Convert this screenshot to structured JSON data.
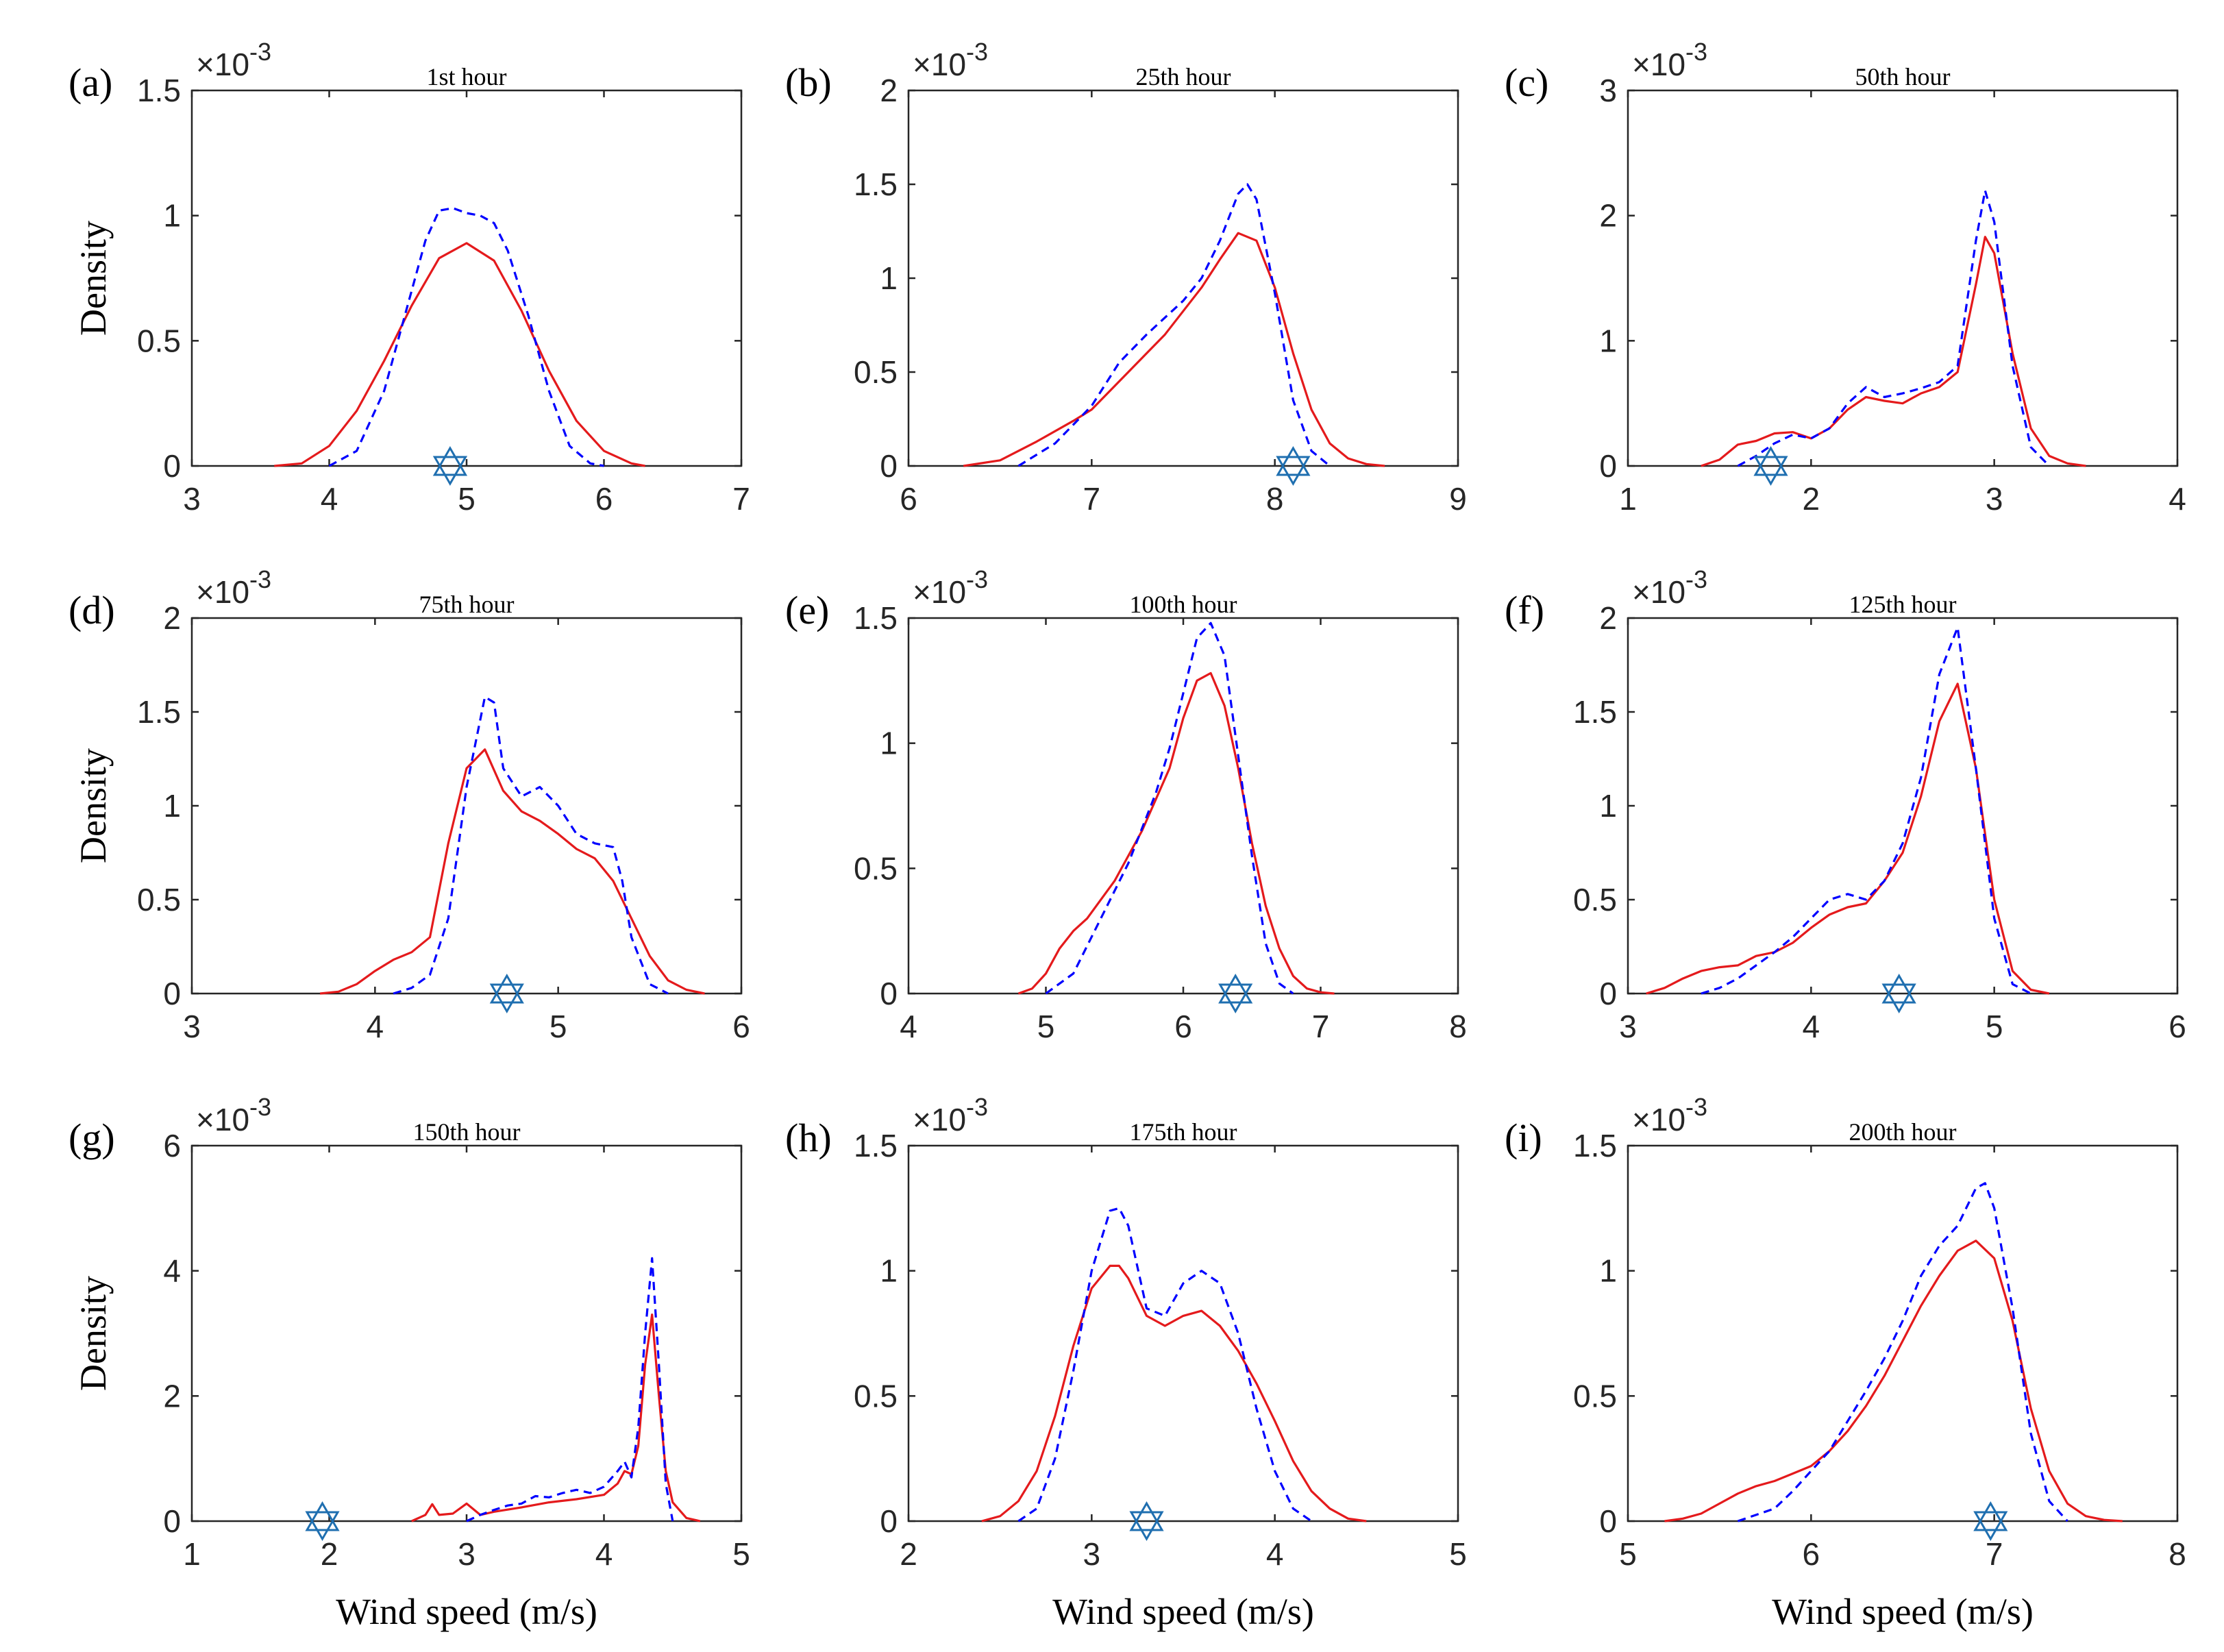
{
  "figure": {
    "xlabel": "Wind speed (m/s)",
    "ylabel": "Density",
    "exponent_base": "×10",
    "exponent_power": "-3"
  },
  "colors": {
    "solid": "#e41a1c",
    "dashed": "#0000ff",
    "marker": "#1f6fb0",
    "axis": "#262626"
  },
  "chart_data": [
    {
      "type": "line",
      "panel": "(a)",
      "title": "1st hour",
      "xlim": [
        3,
        7
      ],
      "ylim": [
        0,
        1.5
      ],
      "xticks": [
        "3",
        "4",
        "5",
        "6",
        "7"
      ],
      "yticks": [
        "0",
        "0.5",
        "1",
        "1.5"
      ],
      "ylabel": "Density",
      "xlabel": "",
      "marker": {
        "x": 4.88,
        "y": 0
      },
      "series": [
        {
          "name": "solid",
          "style": "solid",
          "x": [
            3.6,
            3.8,
            4.0,
            4.2,
            4.4,
            4.6,
            4.8,
            5.0,
            5.2,
            5.4,
            5.6,
            5.8,
            6.0,
            6.2,
            6.3
          ],
          "y": [
            0,
            0.01,
            0.08,
            0.22,
            0.42,
            0.64,
            0.83,
            0.89,
            0.82,
            0.62,
            0.38,
            0.18,
            0.06,
            0.01,
            0
          ]
        },
        {
          "name": "dashed",
          "style": "dashed",
          "x": [
            4.0,
            4.2,
            4.4,
            4.55,
            4.7,
            4.8,
            4.9,
            5.0,
            5.1,
            5.2,
            5.3,
            5.45,
            5.6,
            5.75,
            5.9,
            6.0
          ],
          "y": [
            0,
            0.06,
            0.3,
            0.6,
            0.9,
            1.02,
            1.03,
            1.01,
            1.0,
            0.97,
            0.86,
            0.6,
            0.3,
            0.08,
            0.01,
            0
          ]
        }
      ]
    },
    {
      "type": "line",
      "panel": "(b)",
      "title": "25th hour",
      "xlim": [
        6,
        9
      ],
      "ylim": [
        0,
        2
      ],
      "xticks": [
        "6",
        "7",
        "8",
        "9"
      ],
      "yticks": [
        "0",
        "0.5",
        "1",
        "1.5",
        "2"
      ],
      "ylabel": "",
      "xlabel": "",
      "marker": {
        "x": 8.1,
        "y": 0
      },
      "series": [
        {
          "name": "solid",
          "style": "solid",
          "x": [
            6.3,
            6.5,
            6.7,
            6.9,
            7.0,
            7.2,
            7.4,
            7.6,
            7.7,
            7.8,
            7.9,
            8.0,
            8.1,
            8.2,
            8.3,
            8.4,
            8.5,
            8.6
          ],
          "y": [
            0,
            0.03,
            0.13,
            0.24,
            0.3,
            0.5,
            0.7,
            0.95,
            1.1,
            1.24,
            1.2,
            0.95,
            0.6,
            0.3,
            0.12,
            0.04,
            0.01,
            0
          ]
        },
        {
          "name": "dashed",
          "style": "dashed",
          "x": [
            6.6,
            6.8,
            7.0,
            7.15,
            7.3,
            7.5,
            7.6,
            7.7,
            7.8,
            7.85,
            7.9,
            8.0,
            8.1,
            8.2,
            8.3
          ],
          "y": [
            0,
            0.12,
            0.32,
            0.55,
            0.7,
            0.88,
            1.0,
            1.2,
            1.45,
            1.5,
            1.42,
            0.92,
            0.35,
            0.08,
            0
          ]
        }
      ]
    },
    {
      "type": "line",
      "panel": "(c)",
      "title": "50th hour",
      "xlim": [
        1,
        4
      ],
      "ylim": [
        0,
        3
      ],
      "xticks": [
        "1",
        "2",
        "3",
        "4"
      ],
      "yticks": [
        "0",
        "1",
        "2",
        "3"
      ],
      "ylabel": "",
      "xlabel": "",
      "marker": {
        "x": 1.78,
        "y": 0
      },
      "series": [
        {
          "name": "solid",
          "style": "solid",
          "x": [
            1.4,
            1.5,
            1.6,
            1.7,
            1.8,
            1.9,
            2.0,
            2.1,
            2.2,
            2.3,
            2.4,
            2.5,
            2.6,
            2.7,
            2.8,
            2.9,
            2.95,
            3.0,
            3.1,
            3.2,
            3.3,
            3.4,
            3.5
          ],
          "y": [
            0,
            0.05,
            0.17,
            0.2,
            0.26,
            0.27,
            0.22,
            0.3,
            0.45,
            0.55,
            0.52,
            0.5,
            0.58,
            0.63,
            0.75,
            1.45,
            1.83,
            1.7,
            0.9,
            0.3,
            0.08,
            0.02,
            0
          ]
        },
        {
          "name": "dashed",
          "style": "dashed",
          "x": [
            1.6,
            1.7,
            1.8,
            1.9,
            2.0,
            2.1,
            2.2,
            2.3,
            2.4,
            2.5,
            2.6,
            2.7,
            2.8,
            2.9,
            2.95,
            3.0,
            3.1,
            3.2,
            3.3
          ],
          "y": [
            0,
            0.08,
            0.18,
            0.25,
            0.22,
            0.3,
            0.5,
            0.63,
            0.55,
            0.58,
            0.62,
            0.67,
            0.8,
            1.8,
            2.2,
            1.95,
            0.8,
            0.15,
            0
          ]
        }
      ]
    },
    {
      "type": "line",
      "panel": "(d)",
      "title": "75th hour",
      "xlim": [
        3,
        6
      ],
      "ylim": [
        0,
        2
      ],
      "xticks": [
        "3",
        "4",
        "5",
        "6"
      ],
      "yticks": [
        "0",
        "0.5",
        "1",
        "1.5",
        "2"
      ],
      "ylabel": "Density",
      "xlabel": "",
      "marker": {
        "x": 4.72,
        "y": 0
      },
      "series": [
        {
          "name": "solid",
          "style": "solid",
          "x": [
            3.7,
            3.8,
            3.9,
            4.0,
            4.1,
            4.2,
            4.3,
            4.4,
            4.5,
            4.6,
            4.7,
            4.8,
            4.9,
            5.0,
            5.1,
            5.2,
            5.3,
            5.4,
            5.5,
            5.6,
            5.7,
            5.8
          ],
          "y": [
            0,
            0.01,
            0.05,
            0.12,
            0.18,
            0.22,
            0.3,
            0.8,
            1.2,
            1.3,
            1.08,
            0.97,
            0.92,
            0.85,
            0.77,
            0.72,
            0.6,
            0.4,
            0.2,
            0.07,
            0.02,
            0
          ]
        },
        {
          "name": "dashed",
          "style": "dashed",
          "x": [
            4.1,
            4.2,
            4.3,
            4.4,
            4.5,
            4.6,
            4.65,
            4.7,
            4.8,
            4.9,
            5.0,
            5.1,
            5.2,
            5.3,
            5.35,
            5.4,
            5.5,
            5.6
          ],
          "y": [
            0,
            0.03,
            0.1,
            0.4,
            1.1,
            1.58,
            1.55,
            1.2,
            1.05,
            1.1,
            1.0,
            0.85,
            0.8,
            0.78,
            0.6,
            0.3,
            0.05,
            0
          ]
        }
      ]
    },
    {
      "type": "line",
      "panel": "(e)",
      "title": "100th hour",
      "xlim": [
        4,
        8
      ],
      "ylim": [
        0,
        1.5
      ],
      "xticks": [
        "4",
        "5",
        "6",
        "7",
        "8"
      ],
      "yticks": [
        "0",
        "0.5",
        "1",
        "1.5"
      ],
      "ylabel": "",
      "xlabel": "",
      "marker": {
        "x": 6.38,
        "y": 0
      },
      "series": [
        {
          "name": "solid",
          "style": "solid",
          "x": [
            4.8,
            4.9,
            5.0,
            5.1,
            5.2,
            5.3,
            5.5,
            5.7,
            5.9,
            6.0,
            6.1,
            6.2,
            6.3,
            6.4,
            6.5,
            6.6,
            6.7,
            6.8,
            6.9,
            7.0,
            7.1
          ],
          "y": [
            0,
            0.02,
            0.08,
            0.18,
            0.25,
            0.3,
            0.45,
            0.65,
            0.9,
            1.1,
            1.25,
            1.28,
            1.15,
            0.9,
            0.6,
            0.35,
            0.18,
            0.07,
            0.02,
            0.005,
            0
          ]
        },
        {
          "name": "dashed",
          "style": "dashed",
          "x": [
            5.0,
            5.2,
            5.4,
            5.6,
            5.8,
            5.9,
            6.0,
            6.1,
            6.2,
            6.3,
            6.4,
            6.5,
            6.6,
            6.7,
            6.8
          ],
          "y": [
            0,
            0.08,
            0.3,
            0.52,
            0.8,
            0.98,
            1.2,
            1.42,
            1.48,
            1.35,
            0.95,
            0.55,
            0.2,
            0.04,
            0
          ]
        }
      ]
    },
    {
      "type": "line",
      "panel": "(f)",
      "title": "125th hour",
      "xlim": [
        3,
        6
      ],
      "ylim": [
        0,
        2
      ],
      "xticks": [
        "3",
        "4",
        "5",
        "6"
      ],
      "yticks": [
        "0",
        "0.5",
        "1",
        "1.5",
        "2"
      ],
      "ylabel": "",
      "xlabel": "",
      "marker": {
        "x": 4.48,
        "y": 0
      },
      "series": [
        {
          "name": "solid",
          "style": "solid",
          "x": [
            3.1,
            3.2,
            3.3,
            3.4,
            3.5,
            3.6,
            3.7,
            3.8,
            3.9,
            4.0,
            4.1,
            4.2,
            4.3,
            4.4,
            4.5,
            4.6,
            4.7,
            4.8,
            4.9,
            5.0,
            5.1,
            5.2,
            5.3
          ],
          "y": [
            0,
            0.03,
            0.08,
            0.12,
            0.14,
            0.15,
            0.2,
            0.22,
            0.27,
            0.35,
            0.42,
            0.46,
            0.48,
            0.6,
            0.75,
            1.05,
            1.45,
            1.65,
            1.2,
            0.5,
            0.12,
            0.02,
            0
          ]
        },
        {
          "name": "dashed",
          "style": "dashed",
          "x": [
            3.4,
            3.5,
            3.6,
            3.7,
            3.8,
            3.9,
            4.0,
            4.1,
            4.2,
            4.3,
            4.4,
            4.5,
            4.6,
            4.7,
            4.8,
            4.9,
            5.0,
            5.1,
            5.2
          ],
          "y": [
            0,
            0.03,
            0.08,
            0.15,
            0.22,
            0.3,
            0.4,
            0.5,
            0.53,
            0.5,
            0.6,
            0.8,
            1.15,
            1.7,
            1.95,
            1.2,
            0.4,
            0.05,
            0
          ]
        }
      ]
    },
    {
      "type": "line",
      "panel": "(g)",
      "title": "150th hour",
      "xlim": [
        1,
        5
      ],
      "ylim": [
        0,
        6
      ],
      "xticks": [
        "1",
        "2",
        "3",
        "4",
        "5"
      ],
      "yticks": [
        "0",
        "2",
        "4",
        "6"
      ],
      "ylabel": "Density",
      "xlabel": "Wind speed (m/s)",
      "marker": {
        "x": 1.95,
        "y": 0
      },
      "series": [
        {
          "name": "solid",
          "style": "solid",
          "x": [
            2.6,
            2.7,
            2.75,
            2.8,
            2.9,
            3.0,
            3.1,
            3.2,
            3.4,
            3.6,
            3.8,
            4.0,
            4.1,
            4.15,
            4.2,
            4.25,
            4.3,
            4.35,
            4.4,
            4.45,
            4.5,
            4.6,
            4.7
          ],
          "y": [
            0,
            0.1,
            0.27,
            0.1,
            0.12,
            0.28,
            0.1,
            0.15,
            0.22,
            0.3,
            0.35,
            0.42,
            0.6,
            0.8,
            0.75,
            1.2,
            2.5,
            3.3,
            2.0,
            0.8,
            0.3,
            0.05,
            0
          ]
        },
        {
          "name": "dashed",
          "style": "dashed",
          "x": [
            3.0,
            3.1,
            3.2,
            3.3,
            3.4,
            3.5,
            3.6,
            3.7,
            3.8,
            3.9,
            4.0,
            4.1,
            4.15,
            4.2,
            4.25,
            4.3,
            4.35,
            4.4,
            4.45,
            4.5
          ],
          "y": [
            0,
            0.1,
            0.18,
            0.25,
            0.28,
            0.4,
            0.38,
            0.45,
            0.5,
            0.45,
            0.55,
            0.8,
            0.95,
            0.7,
            1.5,
            3.0,
            4.2,
            2.5,
            0.6,
            0
          ]
        }
      ]
    },
    {
      "type": "line",
      "panel": "(h)",
      "title": "175th hour",
      "xlim": [
        2,
        5
      ],
      "ylim": [
        0,
        1.5
      ],
      "xticks": [
        "2",
        "3",
        "4",
        "5"
      ],
      "yticks": [
        "0",
        "0.5",
        "1",
        "1.5"
      ],
      "ylabel": "",
      "xlabel": "Wind speed (m/s)",
      "marker": {
        "x": 3.3,
        "y": 0
      },
      "series": [
        {
          "name": "solid",
          "style": "solid",
          "x": [
            2.4,
            2.5,
            2.6,
            2.7,
            2.8,
            2.9,
            3.0,
            3.1,
            3.15,
            3.2,
            3.3,
            3.4,
            3.5,
            3.6,
            3.7,
            3.8,
            3.9,
            4.0,
            4.1,
            4.2,
            4.3,
            4.4,
            4.5
          ],
          "y": [
            0,
            0.02,
            0.08,
            0.2,
            0.42,
            0.7,
            0.93,
            1.02,
            1.02,
            0.97,
            0.82,
            0.78,
            0.82,
            0.84,
            0.78,
            0.68,
            0.55,
            0.4,
            0.24,
            0.12,
            0.05,
            0.01,
            0
          ]
        },
        {
          "name": "dashed",
          "style": "dashed",
          "x": [
            2.6,
            2.7,
            2.8,
            2.9,
            3.0,
            3.1,
            3.15,
            3.2,
            3.3,
            3.4,
            3.5,
            3.6,
            3.7,
            3.8,
            3.9,
            4.0,
            4.1,
            4.2
          ],
          "y": [
            0,
            0.05,
            0.25,
            0.6,
            1.0,
            1.24,
            1.25,
            1.18,
            0.85,
            0.82,
            0.95,
            1.0,
            0.95,
            0.75,
            0.45,
            0.2,
            0.05,
            0
          ]
        }
      ]
    },
    {
      "type": "line",
      "panel": "(i)",
      "title": "200th hour",
      "xlim": [
        5,
        8
      ],
      "ylim": [
        0,
        1.5
      ],
      "xticks": [
        "5",
        "6",
        "7",
        "8"
      ],
      "yticks": [
        "0",
        "0.5",
        "1",
        "1.5"
      ],
      "ylabel": "",
      "xlabel": "Wind speed (m/s)",
      "marker": {
        "x": 6.98,
        "y": 0
      },
      "series": [
        {
          "name": "solid",
          "style": "solid",
          "x": [
            5.2,
            5.3,
            5.4,
            5.5,
            5.6,
            5.7,
            5.8,
            5.9,
            6.0,
            6.1,
            6.2,
            6.3,
            6.4,
            6.5,
            6.6,
            6.7,
            6.8,
            6.9,
            7.0,
            7.1,
            7.2,
            7.3,
            7.4,
            7.5,
            7.6,
            7.7
          ],
          "y": [
            0,
            0.01,
            0.03,
            0.07,
            0.11,
            0.14,
            0.16,
            0.19,
            0.22,
            0.28,
            0.36,
            0.46,
            0.58,
            0.72,
            0.86,
            0.98,
            1.08,
            1.12,
            1.05,
            0.8,
            0.45,
            0.2,
            0.07,
            0.02,
            0.005,
            0
          ]
        },
        {
          "name": "dashed",
          "style": "dashed",
          "x": [
            5.6,
            5.8,
            5.9,
            6.0,
            6.1,
            6.2,
            6.3,
            6.4,
            6.5,
            6.6,
            6.7,
            6.8,
            6.9,
            6.95,
            7.0,
            7.1,
            7.2,
            7.3,
            7.4
          ],
          "y": [
            0,
            0.05,
            0.12,
            0.2,
            0.28,
            0.4,
            0.52,
            0.65,
            0.8,
            0.98,
            1.1,
            1.18,
            1.33,
            1.35,
            1.25,
            0.85,
            0.35,
            0.08,
            0
          ]
        }
      ]
    }
  ]
}
